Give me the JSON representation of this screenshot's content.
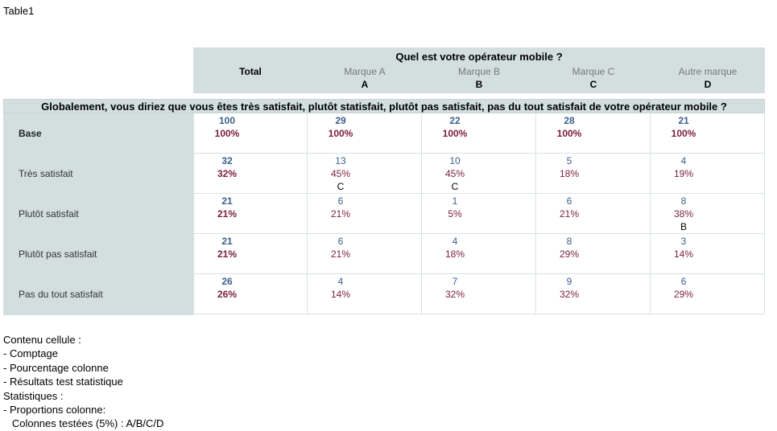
{
  "title": "Table1",
  "question_header": "Quel est votre opérateur mobile ?",
  "columns": [
    {
      "name": "Total",
      "letter": ""
    },
    {
      "name": "Marque A",
      "letter": "A"
    },
    {
      "name": "Marque B",
      "letter": "B"
    },
    {
      "name": "Marque C",
      "letter": "C"
    },
    {
      "name": "Autre marque",
      "letter": "D"
    }
  ],
  "row_question": "Globalement, vous diriez que vous êtes très satisfait, plutôt statisfait, plutôt pas satisfait, pas du tout satisfait de votre opérateur mobile ?",
  "rows": [
    {
      "label": "Base",
      "cells": [
        {
          "count": "100",
          "pct": "100%",
          "sig": ""
        },
        {
          "count": "29",
          "pct": "100%",
          "sig": ""
        },
        {
          "count": "22",
          "pct": "100%",
          "sig": ""
        },
        {
          "count": "28",
          "pct": "100%",
          "sig": ""
        },
        {
          "count": "21",
          "pct": "100%",
          "sig": ""
        }
      ]
    },
    {
      "label": "Très satisfait",
      "cells": [
        {
          "count": "32",
          "pct": "32%",
          "sig": ""
        },
        {
          "count": "13",
          "pct": "45%",
          "sig": "C"
        },
        {
          "count": "10",
          "pct": "45%",
          "sig": "C"
        },
        {
          "count": "5",
          "pct": "18%",
          "sig": ""
        },
        {
          "count": "4",
          "pct": "19%",
          "sig": ""
        }
      ]
    },
    {
      "label": "Plutôt satisfait",
      "cells": [
        {
          "count": "21",
          "pct": "21%",
          "sig": ""
        },
        {
          "count": "6",
          "pct": "21%",
          "sig": ""
        },
        {
          "count": "1",
          "pct": "5%",
          "sig": ""
        },
        {
          "count": "6",
          "pct": "21%",
          "sig": ""
        },
        {
          "count": "8",
          "pct": "38%",
          "sig": "B"
        }
      ]
    },
    {
      "label": "Plutôt pas satisfait",
      "cells": [
        {
          "count": "21",
          "pct": "21%",
          "sig": ""
        },
        {
          "count": "6",
          "pct": "21%",
          "sig": ""
        },
        {
          "count": "4",
          "pct": "18%",
          "sig": ""
        },
        {
          "count": "8",
          "pct": "29%",
          "sig": ""
        },
        {
          "count": "3",
          "pct": "14%",
          "sig": ""
        }
      ]
    },
    {
      "label": "Pas du tout satisfait",
      "cells": [
        {
          "count": "26",
          "pct": "26%",
          "sig": ""
        },
        {
          "count": "4",
          "pct": "14%",
          "sig": ""
        },
        {
          "count": "7",
          "pct": "32%",
          "sig": ""
        },
        {
          "count": "9",
          "pct": "32%",
          "sig": ""
        },
        {
          "count": "6",
          "pct": "29%",
          "sig": ""
        }
      ]
    }
  ],
  "notes": [
    "Contenu cellule :",
    "- Comptage",
    "- Pourcentage colonne",
    "- Résultats test statistique",
    "Statistiques :",
    "- Proportions colonne:",
    "   Colonnes testées (5%) : A/B/C/D"
  ]
}
